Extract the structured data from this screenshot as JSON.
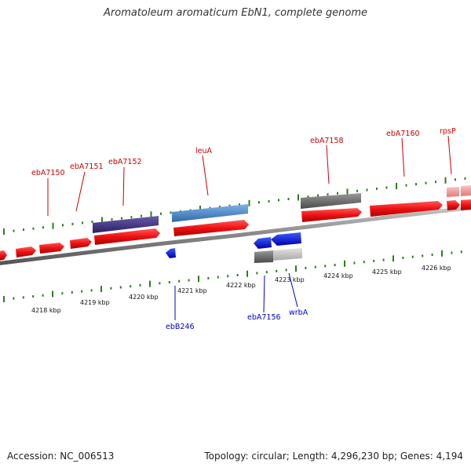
{
  "title": "Aromatoleum aromaticum EbN1, complete genome",
  "footer": {
    "accession": "Accession: NC_006513",
    "summary": "Topology: circular; Length: 4,296,230 bp; Genes: 4,194"
  },
  "colors": {
    "forward_label": "#cc0000",
    "reverse_label": "#0000cc",
    "cds": "#ee1111",
    "tick": "#2e7d1e",
    "backbone": "#777777"
  },
  "ruler": {
    "unit": "kbp",
    "labels": [
      "4218 kbp",
      "4219 kbp",
      "4220 kbp",
      "4221 kbp",
      "4222 kbp",
      "4223 kbp",
      "4224 kbp",
      "4225 kbp",
      "4226 kbp"
    ]
  },
  "forward_genes": [
    {
      "id": "fwd-0",
      "label": ""
    },
    {
      "id": "fwd-1",
      "label": ""
    },
    {
      "id": "fwd-2",
      "label": "ebA7150"
    },
    {
      "id": "fwd-3",
      "label": "ebA7151"
    },
    {
      "id": "fwd-4",
      "label": "ebA7152"
    },
    {
      "id": "fwd-5",
      "label": "leuA"
    },
    {
      "id": "fwd-6",
      "label": "ebA7158"
    },
    {
      "id": "fwd-7",
      "label": "ebA7160"
    },
    {
      "id": "fwd-8",
      "label": "rpsP"
    },
    {
      "id": "fwd-9",
      "label": ""
    }
  ],
  "reverse_genes": [
    {
      "id": "rev-1",
      "label": "ebB246"
    },
    {
      "id": "rev-2",
      "label": ""
    },
    {
      "id": "rev-3",
      "label": "ebA7156"
    },
    {
      "id": "rev-4",
      "label": "wrbA"
    }
  ],
  "labels": {
    "ebA7150": "ebA7150",
    "ebA7151": "ebA7151",
    "ebA7152": "ebA7152",
    "leuA": "leuA",
    "ebA7158": "ebA7158",
    "ebA7160": "ebA7160",
    "rpsP": "rpsP",
    "ebB246": "ebB246",
    "ebA7156": "ebA7156",
    "wrbA": "wrbA"
  }
}
